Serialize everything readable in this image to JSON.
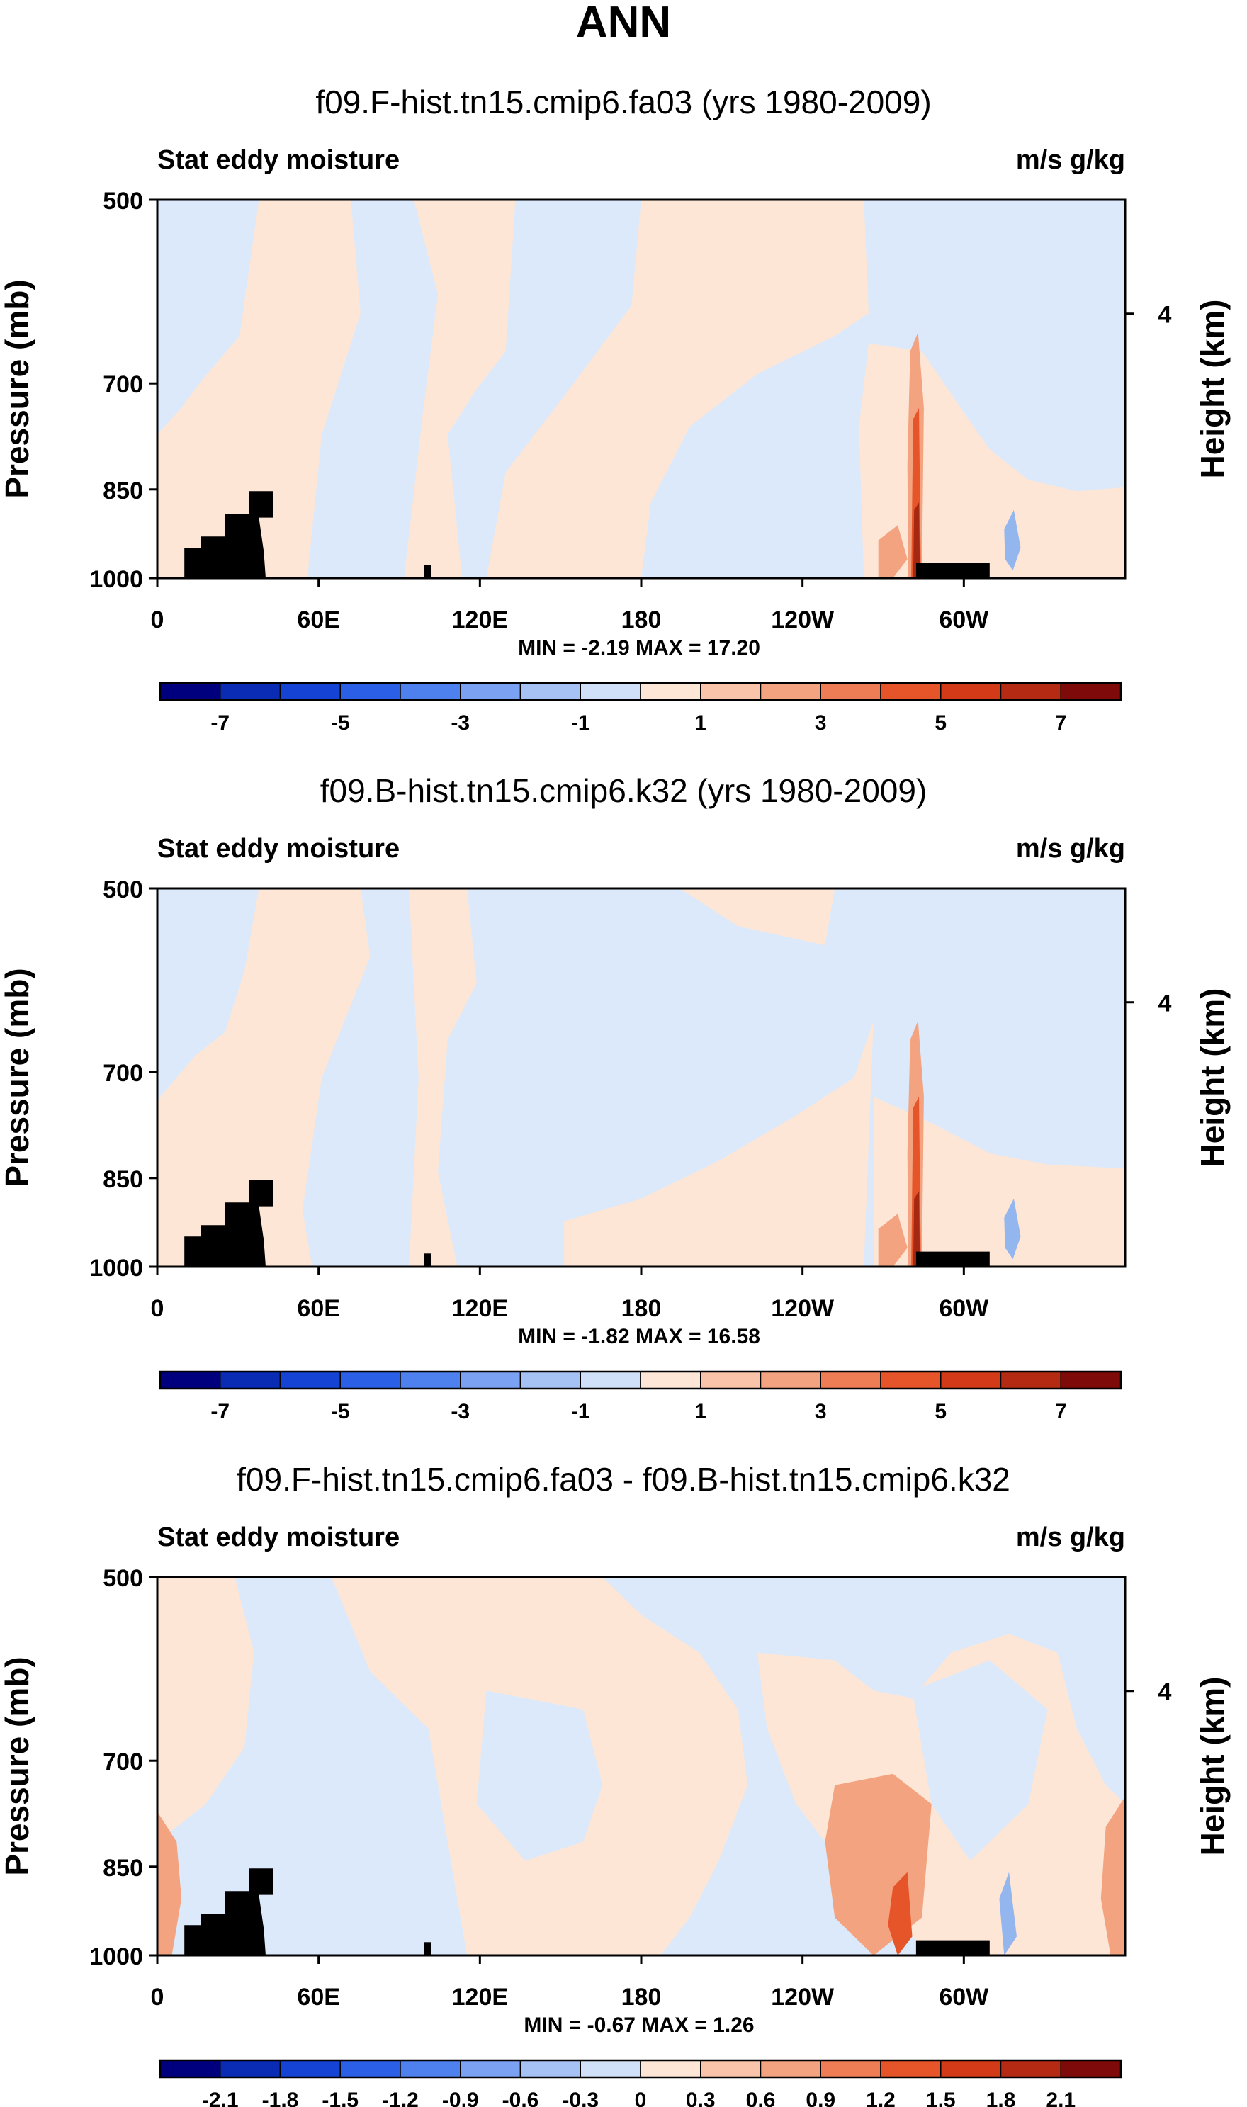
{
  "main_title": "ANN",
  "colors": {
    "ocean_neg_light": "#dce9fa",
    "ocean_pos_light": "#fde6d6",
    "land": "#000000",
    "pos_mid": "#f3a37f",
    "pos_strong": "#e6552a",
    "pos_max": "#a52812",
    "neg_mid": "#93b6ee"
  },
  "chart_data": [
    {
      "type": "heatmap",
      "title": "f09.F-hist.tn15.cmip6.fa03 (yrs 1980-2009)",
      "left_label": "Stat eddy moisture",
      "right_label": "m/s g/kg",
      "ylabel": "Pressure (mb)",
      "ylabel_right": "Height (km)",
      "x_ticks": [
        "0",
        "60E",
        "120E",
        "180",
        "120W",
        "60W"
      ],
      "x_tick_lons": [
        0,
        60,
        120,
        180,
        240,
        300
      ],
      "y_ticks": [
        "500",
        "700",
        "850",
        "1000"
      ],
      "y_tick_values": [
        500,
        700,
        850,
        1000
      ],
      "right_ticks": [
        "4"
      ],
      "right_tick_pressure": 616,
      "ylim": [
        1000,
        500
      ],
      "xlim": [
        0,
        360
      ],
      "min_max_text": "MIN = -2.19  MAX = 17.20",
      "colorbar": {
        "colors": [
          "#00007f",
          "#0a2cb5",
          "#1543d4",
          "#2a5fe6",
          "#4e80ee",
          "#7ba1f2",
          "#a6c2f5",
          "#d0e0f8",
          "#fde6d6",
          "#f9c4a9",
          "#f3a37f",
          "#ee7d55",
          "#e6552a",
          "#d33a18",
          "#b42a12",
          "#7f0a0a"
        ],
        "labels": [
          "-7",
          "-5",
          "-3",
          "-1",
          "1",
          "3",
          "5",
          "7"
        ]
      }
    },
    {
      "type": "heatmap",
      "title": "f09.B-hist.tn15.cmip6.k32 (yrs 1980-2009)",
      "left_label": "Stat eddy moisture",
      "right_label": "m/s g/kg",
      "ylabel": "Pressure (mb)",
      "ylabel_right": "Height (km)",
      "x_ticks": [
        "0",
        "60E",
        "120E",
        "180",
        "120W",
        "60W"
      ],
      "x_tick_lons": [
        0,
        60,
        120,
        180,
        240,
        300
      ],
      "y_ticks": [
        "500",
        "700",
        "850",
        "1000"
      ],
      "y_tick_values": [
        500,
        700,
        850,
        1000
      ],
      "right_ticks": [
        "4"
      ],
      "right_tick_pressure": 616,
      "ylim": [
        1000,
        500
      ],
      "xlim": [
        0,
        360
      ],
      "min_max_text": "MIN = -1.82  MAX = 16.58",
      "colorbar": {
        "colors": [
          "#00007f",
          "#0a2cb5",
          "#1543d4",
          "#2a5fe6",
          "#4e80ee",
          "#7ba1f2",
          "#a6c2f5",
          "#d0e0f8",
          "#fde6d6",
          "#f9c4a9",
          "#f3a37f",
          "#ee7d55",
          "#e6552a",
          "#d33a18",
          "#b42a12",
          "#7f0a0a"
        ],
        "labels": [
          "-7",
          "-5",
          "-3",
          "-1",
          "1",
          "3",
          "5",
          "7"
        ]
      }
    },
    {
      "type": "heatmap",
      "title": "f09.F-hist.tn15.cmip6.fa03 - f09.B-hist.tn15.cmip6.k32",
      "left_label": "Stat eddy moisture",
      "right_label": "m/s g/kg",
      "ylabel": "Pressure (mb)",
      "ylabel_right": "Height (km)",
      "x_ticks": [
        "0",
        "60E",
        "120E",
        "180",
        "120W",
        "60W"
      ],
      "x_tick_lons": [
        0,
        60,
        120,
        180,
        240,
        300
      ],
      "y_ticks": [
        "500",
        "700",
        "850",
        "1000"
      ],
      "y_tick_values": [
        500,
        700,
        850,
        1000
      ],
      "right_ticks": [
        "4"
      ],
      "right_tick_pressure": 616,
      "ylim": [
        1000,
        500
      ],
      "xlim": [
        0,
        360
      ],
      "min_max_text": "MIN = -0.67  MAX =  1.26",
      "colorbar": {
        "colors": [
          "#00007f",
          "#0a2cb5",
          "#1543d4",
          "#2a5fe6",
          "#4e80ee",
          "#7ba1f2",
          "#a6c2f5",
          "#d0e0f8",
          "#fde6d6",
          "#f9c4a9",
          "#f3a37f",
          "#ee7d55",
          "#e6552a",
          "#d33a18",
          "#b42a12",
          "#7f0a0a"
        ],
        "labels": [
          "-2.1",
          "-1.8",
          "-1.5",
          "-1.2",
          "-0.9",
          "-0.6",
          "-0.3",
          "0",
          "0.3",
          "0.6",
          "0.9",
          "1.2",
          "1.5",
          "1.8",
          "2.1"
        ]
      }
    }
  ]
}
